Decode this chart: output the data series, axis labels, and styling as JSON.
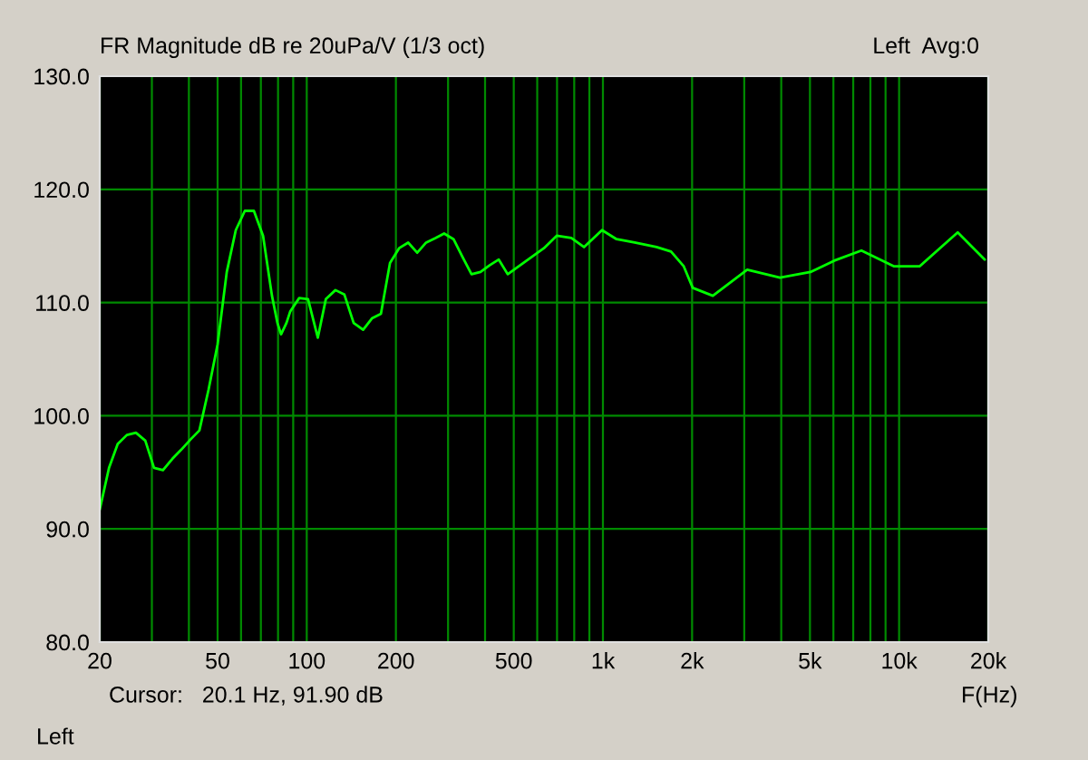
{
  "chart_data": {
    "type": "line",
    "title": "FR Magnitude dB re 20uPa/V (1/3 oct)",
    "xlabel": "F(Hz)",
    "log": "x",
    "annotations": [
      "Left  Avg:0",
      "Cursor:   20.1 Hz, 91.90 dB",
      "Left"
    ],
    "series": [
      {
        "color": "#00ff00",
        "x": [
          20,
          21.5,
          23.0,
          24.7,
          26.5,
          28.5,
          30.5,
          32.7,
          35.2,
          37.7,
          40.5,
          43.4,
          46.6,
          50.0,
          53.7,
          57.6,
          61.8,
          66.3,
          71.2,
          76.3,
          79.6,
          81.9,
          85.4,
          87.9,
          94.3,
          101,
          109,
          116,
          125,
          134,
          144,
          155,
          166,
          178,
          191,
          205,
          220,
          236,
          253,
          272,
          291,
          313,
          336,
          360,
          386,
          415,
          445,
          477,
          632,
          698,
          782,
          863,
          993,
          1112,
          1280,
          1517,
          1698,
          1875,
          2010,
          2350,
          3070,
          3960,
          5020,
          6040,
          7460,
          9620,
          11720,
          15770,
          19460
        ],
        "values": [
          91.7,
          95.4,
          97.5,
          98.3,
          98.5,
          97.8,
          95.4,
          95.2,
          96.2,
          97.0,
          97.9,
          98.7,
          102.3,
          106.3,
          112.7,
          116.4,
          118.1,
          118.1,
          115.9,
          110.6,
          108.2,
          107.2,
          108.2,
          109.2,
          110.4,
          110.3,
          106.9,
          110.3,
          111.1,
          110.7,
          108.2,
          107.6,
          108.6,
          109.0,
          113.5,
          114.8,
          115.3,
          114.4,
          115.3,
          115.7,
          116.1,
          115.6,
          114.0,
          112.5,
          112.7,
          113.3,
          113.8,
          112.5,
          114.8,
          115.9,
          115.7,
          114.9,
          116.4,
          115.6,
          115.3,
          114.9,
          114.5,
          113.2,
          111.3,
          110.6,
          112.9,
          112.2,
          112.7,
          113.7,
          114.6,
          113.2,
          113.2,
          116.2,
          113.8
        ]
      }
    ],
    "xlim": [
      20,
      20000
    ],
    "ylim": [
      80,
      130
    ],
    "xticks": [
      {
        "value": 20,
        "label": "20"
      },
      {
        "value": 30,
        "label": null
      },
      {
        "value": 40,
        "label": null
      },
      {
        "value": 50,
        "label": "50"
      },
      {
        "value": 60,
        "label": null
      },
      {
        "value": 70,
        "label": null
      },
      {
        "value": 80,
        "label": null
      },
      {
        "value": 90,
        "label": null
      },
      {
        "value": 100,
        "label": "100"
      },
      {
        "value": 200,
        "label": "200"
      },
      {
        "value": 300,
        "label": null
      },
      {
        "value": 400,
        "label": null
      },
      {
        "value": 500,
        "label": "500"
      },
      {
        "value": 600,
        "label": null
      },
      {
        "value": 700,
        "label": null
      },
      {
        "value": 800,
        "label": null
      },
      {
        "value": 900,
        "label": null
      },
      {
        "value": 1000,
        "label": "1k"
      },
      {
        "value": 2000,
        "label": "2k"
      },
      {
        "value": 3000,
        "label": null
      },
      {
        "value": 4000,
        "label": null
      },
      {
        "value": 5000,
        "label": "5k"
      },
      {
        "value": 6000,
        "label": null
      },
      {
        "value": 7000,
        "label": null
      },
      {
        "value": 8000,
        "label": null
      },
      {
        "value": 9000,
        "label": null
      },
      {
        "value": 10000,
        "label": "10k"
      },
      {
        "value": 20000,
        "label": "20k"
      }
    ],
    "yticks": [
      {
        "value": 80,
        "label": "80.0"
      },
      {
        "value": 90,
        "label": "90.0"
      },
      {
        "value": 100,
        "label": "100.0"
      },
      {
        "value": 110,
        "label": "110.0"
      },
      {
        "value": 120,
        "label": "120.0"
      },
      {
        "value": 130,
        "label": "130.0"
      }
    ],
    "grid": true,
    "legend": false,
    "line_style": "solid",
    "marker": "none"
  }
}
